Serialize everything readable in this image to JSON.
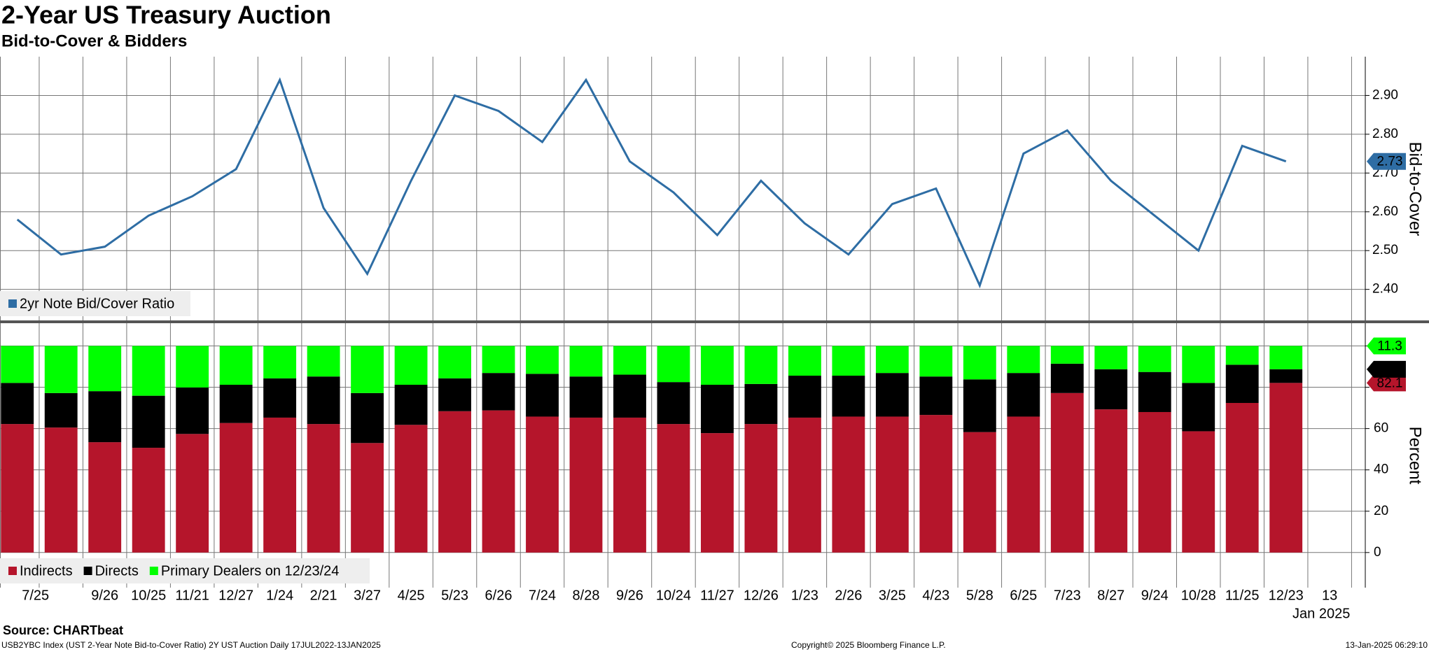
{
  "header": {
    "title": "2-Year US Treasury Auction",
    "subtitle": "Bid-to-Cover & Bidders"
  },
  "chart_data": [
    {
      "type": "line",
      "y_axis_label": "Bid-to-Cover",
      "ylim": [
        2.32,
        3.0
      ],
      "yticks": [
        {
          "value": 2.4,
          "label": "2.40"
        },
        {
          "value": 2.5,
          "label": "2.50"
        },
        {
          "value": 2.6,
          "label": "2.60"
        },
        {
          "value": 2.7,
          "label": "2.70"
        },
        {
          "value": 2.8,
          "label": "2.80"
        },
        {
          "value": 2.9,
          "label": "2.90"
        }
      ],
      "grid": true,
      "series": [
        {
          "name": "2yr Note Bid/Cover Ratio",
          "color": "#2e6da4",
          "values": [
            2.58,
            2.49,
            2.51,
            2.59,
            2.64,
            2.71,
            2.94,
            2.61,
            2.44,
            2.68,
            2.9,
            2.86,
            2.78,
            2.94,
            2.73,
            2.65,
            2.54,
            2.68,
            2.57,
            2.49,
            2.62,
            2.66,
            2.41,
            2.75,
            2.81,
            2.68,
            2.59,
            2.5,
            2.77,
            2.73,
            null
          ]
        }
      ]
    },
    {
      "type": "stacked_bar",
      "y_axis_label": "Percent",
      "ylim": [
        -17,
        111
      ],
      "yticks": [
        0,
        20,
        40,
        60,
        80,
        100
      ],
      "grid": true,
      "categories": [
        "7/25",
        null,
        "9/26",
        "10/25",
        "11/21",
        "12/27",
        "1/24",
        "2/21",
        "3/27",
        "4/25",
        "5/23",
        "6/26",
        "7/24",
        "8/28",
        "9/26",
        "10/24",
        "11/27",
        "12/26",
        "1/23",
        "2/26",
        "3/25",
        "4/23",
        "5/28",
        "6/25",
        "7/23",
        "8/27",
        "9/24",
        "10/28",
        "11/25",
        "12/23",
        "13"
      ],
      "x_note": "Jan 2025",
      "series": [
        {
          "name": "Indirects",
          "color": "#b5152b",
          "values": [
            62.2,
            60.5,
            53.4,
            50.7,
            57.4,
            62.7,
            65.3,
            62.2,
            53.0,
            61.8,
            68.4,
            68.8,
            65.8,
            65.3,
            65.3,
            62.2,
            57.8,
            62.2,
            65.3,
            65.8,
            65.8,
            66.6,
            58.3,
            65.8,
            77.2,
            69.3,
            68.0,
            58.7,
            72.4,
            82.1,
            null
          ]
        },
        {
          "name": "Directs",
          "color": "#000000",
          "values": [
            19.9,
            16.7,
            24.7,
            25.2,
            22.5,
            18.5,
            19.0,
            23.0,
            24.2,
            19.4,
            15.9,
            18.1,
            20.7,
            19.9,
            20.8,
            20.3,
            23.4,
            19.4,
            20.3,
            19.8,
            21.1,
            18.6,
            25.5,
            21.1,
            14.2,
            19.4,
            19.4,
            23.4,
            18.5,
            6.6,
            null
          ]
        },
        {
          "name": "Primary Dealers on 12/23/24",
          "color": "#00ff00",
          "values": [
            17.9,
            22.8,
            21.9,
            24.1,
            20.1,
            18.8,
            15.7,
            14.8,
            22.8,
            18.8,
            15.7,
            13.1,
            13.5,
            14.8,
            13.9,
            17.5,
            18.8,
            18.4,
            14.4,
            14.4,
            13.1,
            14.8,
            16.2,
            13.1,
            8.6,
            11.3,
            12.6,
            17.9,
            9.1,
            11.3,
            null
          ]
        }
      ]
    }
  ],
  "footer": {
    "source": "Source: CHARTbeat",
    "description": "USB2YBC Index (UST 2-Year Note Bid-to-Cover Ratio) 2Y UST Auction  Daily 17JUL2022-13JAN2025",
    "copyright": "Copyright© 2025 Bloomberg Finance L.P.",
    "timestamp": "13-Jan-2025 06:29:10"
  }
}
